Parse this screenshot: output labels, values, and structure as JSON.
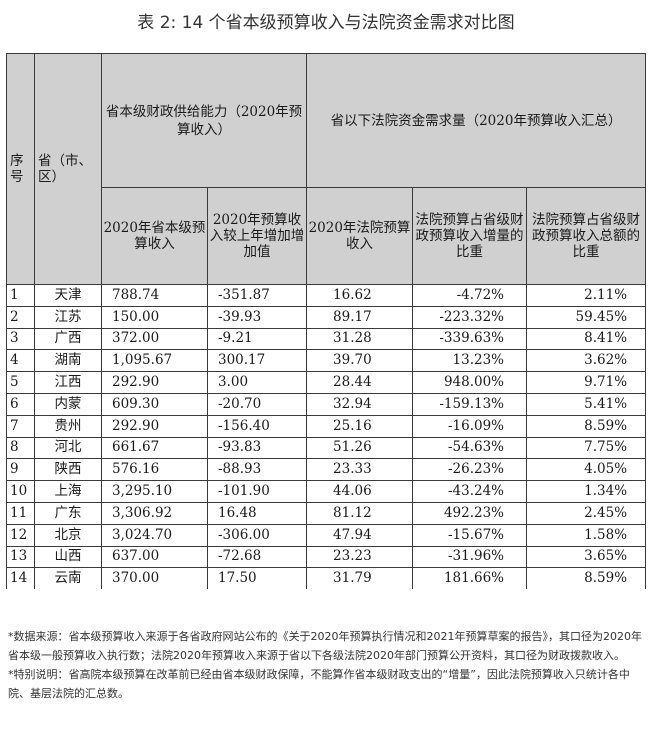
{
  "title": "表 2: 14 个省本级预算收入与法院资金需求对比图",
  "header": {
    "seq": "序号",
    "province": "省（市、区）",
    "group_left": "省本级财政供给能力（2020年预算收入）",
    "group_right": "省以下法院资金需求量（2020年预算收入汇总）",
    "col_budget": "2020年省本级预算收入",
    "col_increase": "2020年预算收入较上年增加增加值",
    "col_court": "2020年法院预算收入",
    "col_court_ratio": "法院预算占省级财政预算收入增量的比重",
    "col_total_ratio": "法院预算占省级财政预算收入总额的比重"
  },
  "rows": [
    {
      "idx": "1",
      "name": "天津",
      "budget": "788.74",
      "increase": "-351.87",
      "court": "16.62",
      "ratio_inc": "-4.72%",
      "ratio_total": "2.11%"
    },
    {
      "idx": "2",
      "name": "江苏",
      "budget": "150.00",
      "increase": "-39.93",
      "court": "89.17",
      "ratio_inc": "-223.32%",
      "ratio_total": "59.45%"
    },
    {
      "idx": "3",
      "name": "广西",
      "budget": "372.00",
      "increase": "-9.21",
      "court": "31.28",
      "ratio_inc": "-339.63%",
      "ratio_total": "8.41%"
    },
    {
      "idx": "4",
      "name": "湖南",
      "budget": "1,095.67",
      "increase": "300.17",
      "court": "39.70",
      "ratio_inc": "13.23%",
      "ratio_total": "3.62%"
    },
    {
      "idx": "5",
      "name": "江西",
      "budget": "292.90",
      "increase": "3.00",
      "court": "28.44",
      "ratio_inc": "948.00%",
      "ratio_total": "9.71%"
    },
    {
      "idx": "6",
      "name": "内蒙",
      "budget": "609.30",
      "increase": "-20.70",
      "court": "32.94",
      "ratio_inc": "-159.13%",
      "ratio_total": "5.41%"
    },
    {
      "idx": "7",
      "name": "贵州",
      "budget": "292.90",
      "increase": "-156.40",
      "court": "25.16",
      "ratio_inc": "-16.09%",
      "ratio_total": "8.59%"
    },
    {
      "idx": "8",
      "name": "河北",
      "budget": "661.67",
      "increase": "-93.83",
      "court": "51.26",
      "ratio_inc": "-54.63%",
      "ratio_total": "7.75%"
    },
    {
      "idx": "9",
      "name": "陕西",
      "budget": "576.16",
      "increase": "-88.93",
      "court": "23.33",
      "ratio_inc": "-26.23%",
      "ratio_total": "4.05%"
    },
    {
      "idx": "10",
      "name": "上海",
      "budget": "3,295.10",
      "increase": "-101.90",
      "court": "44.06",
      "ratio_inc": "-43.24%",
      "ratio_total": "1.34%"
    },
    {
      "idx": "11",
      "name": "广东",
      "budget": "3,306.92",
      "increase": "16.48",
      "court": "81.12",
      "ratio_inc": "492.23%",
      "ratio_total": "2.45%"
    },
    {
      "idx": "12",
      "name": "北京",
      "budget": "3,024.70",
      "increase": "-306.00",
      "court": "47.94",
      "ratio_inc": "-15.67%",
      "ratio_total": "1.58%"
    },
    {
      "idx": "13",
      "name": "山西",
      "budget": "637.00",
      "increase": "-72.68",
      "court": "23.23",
      "ratio_inc": "-31.96%",
      "ratio_total": "3.65%"
    },
    {
      "idx": "14",
      "name": "云南",
      "budget": "370.00",
      "increase": "17.50",
      "court": "31.79",
      "ratio_inc": "181.66%",
      "ratio_total": "8.59%"
    }
  ],
  "notes": {
    "source": "*数据来源：省本级预算收入来源于各省政府网站公布的《关于2020年预算执行情况和2021年预算草案的报告》，其口径为2020年省本级一般预算收入执行数；法院2020年预算收入来源于省以下各级法院2020年部门预算公开资料，其口径为财政拨款收入。",
    "special": "*特别说明：省高院本级预算在改革前已经由省本级财政保障，不能算作省本级财政支出的“增量”，因此法院预算收入只统计各中院、基层法院的汇总数。"
  }
}
